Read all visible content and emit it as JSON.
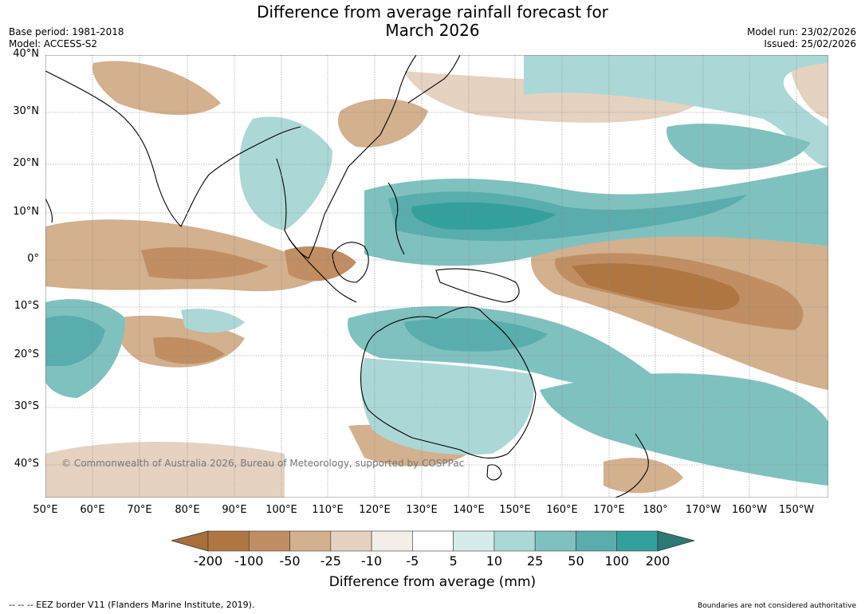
{
  "title_line1": "Difference from average rainfall forecast for",
  "title_line2": "March 2026",
  "meta_left": {
    "base_period": "Base period: 1981-2018",
    "model": "Model: ACCESS-S2"
  },
  "meta_right": {
    "model_run": "Model run: 23/02/2026",
    "issued": "Issued: 25/02/2026"
  },
  "lat_labels": [
    "40°N",
    "30°N",
    "20°N",
    "10°N",
    "0°",
    "10°S",
    "20°S",
    "30°S",
    "40°S"
  ],
  "lon_labels": [
    "50°E",
    "60°E",
    "70°E",
    "80°E",
    "90°E",
    "100°E",
    "110°E",
    "120°E",
    "130°E",
    "140°E",
    "150°E",
    "160°E",
    "170°E",
    "180°",
    "170°W",
    "160°W",
    "150°W"
  ],
  "colorbar": {
    "ticks": [
      "-200",
      "-100",
      "-50",
      "-25",
      "-10",
      "-5",
      "5",
      "10",
      "25",
      "50",
      "100",
      "200"
    ],
    "colors": [
      "#a86f38",
      "#af7641",
      "#c08e62",
      "#d3b08e",
      "#e6d2c1",
      "#f3eee7",
      "#ffffff",
      "#d6eceb",
      "#abd8d6",
      "#7fc1bf",
      "#5aadad",
      "#33a09b",
      "#2b7a74"
    ],
    "label": "Difference from average (mm)"
  },
  "copyright": "© Commonwealth of Australia 2026, Bureau of Meteorology, supported by COSPPac",
  "footer_left": "-- -- -- EEZ border V11 (Flanders Marine Institute, 2019).",
  "footer_right": "Boundaries are not considered authoritative"
}
